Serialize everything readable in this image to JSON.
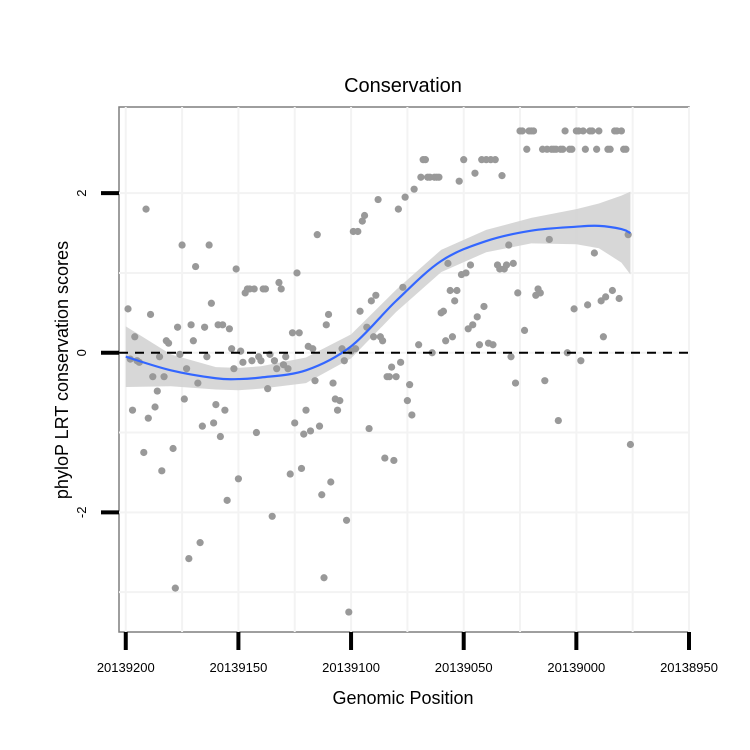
{
  "chart_data": {
    "type": "scatter",
    "title": "Conservation",
    "xlabel": "Genomic Position",
    "ylabel": "phyloP LRT conservation scores",
    "x_reversed": true,
    "xlim": [
      20139203,
      20138950
    ],
    "ylim": [
      -3.5,
      3.08
    ],
    "x_ticks": [
      20139200,
      20139150,
      20139100,
      20139050,
      20139000,
      20138950
    ],
    "x_tick_labels": [
      "20139200",
      "20139150",
      "20139100",
      "20139050",
      "20139000",
      "20138950"
    ],
    "y_ticks": [
      -2,
      0,
      2
    ],
    "y_tick_labels": [
      "-2",
      "0",
      "2"
    ],
    "reference_line": {
      "y": 0,
      "style": "dashed",
      "color": "#000000"
    },
    "colors": {
      "points": "#999999",
      "smooth_line": "#3366ff",
      "confidence_band": "#d3d3d3",
      "panel_border": "#7f7f7f",
      "grid": "#f3f3f3"
    },
    "points": [
      [
        20139199,
        0.55
      ],
      [
        20139198,
        -0.08
      ],
      [
        20139197,
        -0.72
      ],
      [
        20139196,
        0.2
      ],
      [
        20139195,
        -0.1
      ],
      [
        20139194,
        -0.12
      ],
      [
        20139192,
        -1.25
      ],
      [
        20139191,
        1.8
      ],
      [
        20139190,
        -0.82
      ],
      [
        20139189,
        0.48
      ],
      [
        20139188,
        -0.3
      ],
      [
        20139187,
        -0.68
      ],
      [
        20139186,
        -0.48
      ],
      [
        20139185,
        -0.05
      ],
      [
        20139184,
        -1.48
      ],
      [
        20139183,
        -0.3
      ],
      [
        20139182,
        0.15
      ],
      [
        20139181,
        0.12
      ],
      [
        20139179,
        -1.2
      ],
      [
        20139178,
        -2.95
      ],
      [
        20139177,
        0.32
      ],
      [
        20139176,
        -0.02
      ],
      [
        20139175,
        1.35
      ],
      [
        20139174,
        -0.58
      ],
      [
        20139173,
        -0.2
      ],
      [
        20139172,
        -2.58
      ],
      [
        20139171,
        0.35
      ],
      [
        20139170,
        0.15
      ],
      [
        20139169,
        1.08
      ],
      [
        20139168,
        -0.38
      ],
      [
        20139167,
        -2.38
      ],
      [
        20139166,
        -0.92
      ],
      [
        20139165,
        0.32
      ],
      [
        20139164,
        -0.05
      ],
      [
        20139163,
        1.35
      ],
      [
        20139162,
        0.62
      ],
      [
        20139161,
        -0.88
      ],
      [
        20139160,
        -0.65
      ],
      [
        20139159,
        0.35
      ],
      [
        20139158,
        -1.05
      ],
      [
        20139157,
        0.35
      ],
      [
        20139156,
        -0.72
      ],
      [
        20139155,
        -1.85
      ],
      [
        20139154,
        0.3
      ],
      [
        20139153,
        0.05
      ],
      [
        20139152,
        -0.2
      ],
      [
        20139151,
        1.05
      ],
      [
        20139150,
        -1.58
      ],
      [
        20139149,
        0.02
      ],
      [
        20139148,
        -0.12
      ],
      [
        20139147,
        0.75
      ],
      [
        20139146,
        0.8
      ],
      [
        20139145,
        0.8
      ],
      [
        20139144,
        -0.1
      ],
      [
        20139143,
        0.8
      ],
      [
        20139142,
        -1
      ],
      [
        20139141,
        -0.05
      ],
      [
        20139140,
        -0.1
      ],
      [
        20139139,
        0.8
      ],
      [
        20139138,
        0.8
      ],
      [
        20139137,
        -0.45
      ],
      [
        20139136,
        -0.02
      ],
      [
        20139135,
        -2.05
      ],
      [
        20139134,
        -0.1
      ],
      [
        20139133,
        -0.2
      ],
      [
        20139132,
        0.88
      ],
      [
        20139131,
        0.8
      ],
      [
        20139130,
        -0.15
      ],
      [
        20139129,
        -0.05
      ],
      [
        20139128,
        -0.2
      ],
      [
        20139127,
        -1.52
      ],
      [
        20139126,
        0.25
      ],
      [
        20139125,
        -0.88
      ],
      [
        20139124,
        1.0
      ],
      [
        20139123,
        0.25
      ],
      [
        20139122,
        -1.45
      ],
      [
        20139121,
        -1.02
      ],
      [
        20139120,
        -0.72
      ],
      [
        20139119,
        0.08
      ],
      [
        20139118,
        -0.98
      ],
      [
        20139117,
        0.05
      ],
      [
        20139116,
        -0.35
      ],
      [
        20139115,
        1.48
      ],
      [
        20139114,
        -0.92
      ],
      [
        20139113,
        -1.78
      ],
      [
        20139112,
        -2.82
      ],
      [
        20139111,
        0.35
      ],
      [
        20139110,
        0.48
      ],
      [
        20139109,
        -1.62
      ],
      [
        20139108,
        -0.38
      ],
      [
        20139107,
        -0.58
      ],
      [
        20139106,
        -0.72
      ],
      [
        20139105,
        -0.6
      ],
      [
        20139104,
        0.05
      ],
      [
        20139103,
        -0.1
      ],
      [
        20139102,
        -2.1
      ],
      [
        20139101,
        -3.25
      ],
      [
        20139100,
        0.02
      ],
      [
        20139099,
        1.52
      ],
      [
        20139098,
        0.05
      ],
      [
        20139097,
        1.52
      ],
      [
        20139096,
        0.52
      ],
      [
        20139095,
        1.65
      ],
      [
        20139094,
        1.72
      ],
      [
        20139093,
        0.32
      ],
      [
        20139092,
        -0.95
      ],
      [
        20139091,
        0.65
      ],
      [
        20139090,
        0.2
      ],
      [
        20139089,
        0.72
      ],
      [
        20139088,
        1.92
      ],
      [
        20139087,
        0.2
      ],
      [
        20139086,
        0.15
      ],
      [
        20139085,
        -1.32
      ],
      [
        20139084,
        -0.3
      ],
      [
        20139083,
        -0.3
      ],
      [
        20139082,
        -0.18
      ],
      [
        20139081,
        -1.35
      ],
      [
        20139080,
        -0.3
      ],
      [
        20139079,
        1.8
      ],
      [
        20139078,
        -0.12
      ],
      [
        20139077,
        0.82
      ],
      [
        20139076,
        1.95
      ],
      [
        20139075,
        -0.6
      ],
      [
        20139074,
        -0.4
      ],
      [
        20139073,
        -0.78
      ],
      [
        20139072,
        2.05
      ],
      [
        20139070,
        0.1
      ],
      [
        20139069,
        2.2
      ],
      [
        20139068,
        2.42
      ],
      [
        20139067,
        2.42
      ],
      [
        20139066,
        2.2
      ],
      [
        20139065,
        2.2
      ],
      [
        20139064,
        0.0
      ],
      [
        20139063,
        2.2
      ],
      [
        20139062,
        2.2
      ],
      [
        20139061,
        2.2
      ],
      [
        20139060,
        0.5
      ],
      [
        20139059,
        0.52
      ],
      [
        20139058,
        0.15
      ],
      [
        20139057,
        1.12
      ],
      [
        20139056,
        0.78
      ],
      [
        20139055,
        0.2
      ],
      [
        20139054,
        0.65
      ],
      [
        20139053,
        0.78
      ],
      [
        20139052,
        2.15
      ],
      [
        20139051,
        0.98
      ],
      [
        20139050,
        2.42
      ],
      [
        20139049,
        1.0
      ],
      [
        20139048,
        0.3
      ],
      [
        20139047,
        1.1
      ],
      [
        20139046,
        0.35
      ],
      [
        20139045,
        2.25
      ],
      [
        20139044,
        0.45
      ],
      [
        20139043,
        0.1
      ],
      [
        20139042,
        2.42
      ],
      [
        20139041,
        0.58
      ],
      [
        20139040,
        2.42
      ],
      [
        20139039,
        0.12
      ],
      [
        20139038,
        2.42
      ],
      [
        20139037,
        0.1
      ],
      [
        20139036,
        2.42
      ],
      [
        20139035,
        1.1
      ],
      [
        20139034,
        1.05
      ],
      [
        20139033,
        2.22
      ],
      [
        20139032,
        1.05
      ],
      [
        20139031,
        1.1
      ],
      [
        20139030,
        1.35
      ],
      [
        20139029,
        -0.05
      ],
      [
        20139028,
        1.12
      ],
      [
        20139027,
        -0.38
      ],
      [
        20139026,
        0.75
      ],
      [
        20139025,
        2.78
      ],
      [
        20139024,
        2.78
      ],
      [
        20139023,
        0.28
      ],
      [
        20139022,
        2.55
      ],
      [
        20139021,
        2.78
      ],
      [
        20139020,
        2.78
      ],
      [
        20139019,
        2.78
      ],
      [
        20139018,
        0.72
      ],
      [
        20139017,
        0.8
      ],
      [
        20139016,
        0.75
      ],
      [
        20139015,
        2.55
      ],
      [
        20139014,
        -0.35
      ],
      [
        20139013,
        2.55
      ],
      [
        20139012,
        1.42
      ],
      [
        20139011,
        2.55
      ],
      [
        20139010,
        2.55
      ],
      [
        20139009,
        2.55
      ],
      [
        20139008,
        -0.85
      ],
      [
        20139007,
        2.55
      ],
      [
        20139006,
        2.55
      ],
      [
        20139005,
        2.78
      ],
      [
        20139004,
        0.0
      ],
      [
        20139003,
        2.55
      ],
      [
        20139002,
        2.55
      ],
      [
        20139001,
        0.55
      ],
      [
        20139000,
        2.78
      ],
      [
        20138999,
        2.78
      ],
      [
        20138998,
        -0.1
      ],
      [
        20138997,
        2.78
      ],
      [
        20138996,
        2.55
      ],
      [
        20138995,
        0.6
      ],
      [
        20138994,
        2.78
      ],
      [
        20138993,
        2.78
      ],
      [
        20138992,
        1.25
      ],
      [
        20138991,
        2.55
      ],
      [
        20138990,
        2.78
      ],
      [
        20138989,
        0.65
      ],
      [
        20138988,
        0.2
      ],
      [
        20138987,
        0.7
      ],
      [
        20138986,
        2.55
      ],
      [
        20138985,
        2.55
      ],
      [
        20138984,
        0.78
      ],
      [
        20138983,
        2.78
      ],
      [
        20138982,
        2.78
      ],
      [
        20138981,
        0.68
      ],
      [
        20138980,
        2.78
      ],
      [
        20138979,
        2.55
      ],
      [
        20138978,
        2.55
      ],
      [
        20138977,
        1.48
      ],
      [
        20138976,
        -1.15
      ]
    ],
    "smooth": [
      [
        20139200,
        -0.05
      ],
      [
        20139180,
        -0.22
      ],
      [
        20139160,
        -0.32
      ],
      [
        20139150,
        -0.33
      ],
      [
        20139140,
        -0.31
      ],
      [
        20139120,
        -0.22
      ],
      [
        20139100,
        0.08
      ],
      [
        20139080,
        0.65
      ],
      [
        20139060,
        1.15
      ],
      [
        20139040,
        1.4
      ],
      [
        20139020,
        1.53
      ],
      [
        20139000,
        1.58
      ],
      [
        20138990,
        1.59
      ],
      [
        20138980,
        1.55
      ],
      [
        20138976,
        1.5
      ]
    ],
    "band_halfwidth": [
      [
        20139200,
        0.38
      ],
      [
        20139180,
        0.2
      ],
      [
        20139160,
        0.14
      ],
      [
        20139140,
        0.14
      ],
      [
        20139120,
        0.16
      ],
      [
        20139100,
        0.15
      ],
      [
        20139080,
        0.14
      ],
      [
        20139060,
        0.14
      ],
      [
        20139040,
        0.14
      ],
      [
        20139020,
        0.16
      ],
      [
        20139000,
        0.22
      ],
      [
        20138990,
        0.28
      ],
      [
        20138980,
        0.42
      ],
      [
        20138976,
        0.52
      ]
    ]
  }
}
